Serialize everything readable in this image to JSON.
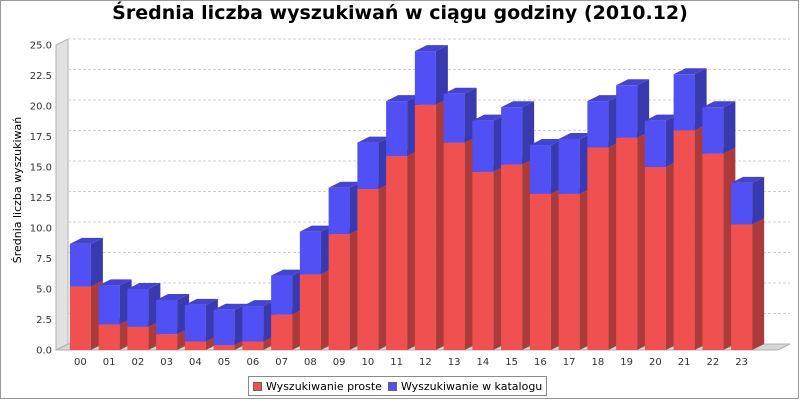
{
  "chart_data": {
    "type": "bar",
    "stacked": true,
    "title": "Średnia liczba wyszukiwań w ciągu godziny (2010.12)",
    "xlabel": "",
    "ylabel": "Średnia liczba wyszukiwań",
    "ylim": [
      0,
      25.0
    ],
    "yticks": [
      "0.0",
      "2.5",
      "5.0",
      "7.5",
      "10.0",
      "12.5",
      "15.0",
      "17.5",
      "20.0",
      "22.5",
      "25.0"
    ],
    "grid": true,
    "legend_position": "bottom",
    "categories": [
      "00",
      "01",
      "02",
      "03",
      "04",
      "05",
      "06",
      "07",
      "08",
      "09",
      "10",
      "11",
      "12",
      "13",
      "14",
      "15",
      "16",
      "17",
      "18",
      "19",
      "20",
      "21",
      "22",
      "23"
    ],
    "series": [
      {
        "name": "Wyszukiwanie proste",
        "color": "#f05050",
        "values": [
          5.2,
          2.1,
          1.9,
          1.3,
          0.7,
          0.4,
          0.7,
          2.9,
          6.2,
          9.5,
          13.2,
          15.9,
          20.1,
          17.0,
          14.6,
          15.2,
          12.8,
          12.8,
          16.6,
          17.4,
          15.0,
          18.0,
          16.1,
          10.3
        ]
      },
      {
        "name": "Wyszukiwanie w katalogu",
        "color": "#5050f5",
        "values": [
          3.5,
          3.2,
          3.1,
          2.8,
          3.0,
          2.9,
          2.9,
          3.2,
          3.5,
          3.8,
          3.8,
          4.5,
          4.4,
          4.0,
          4.2,
          4.7,
          4.0,
          4.5,
          3.8,
          4.3,
          3.8,
          4.6,
          3.8,
          3.4
        ]
      }
    ]
  }
}
